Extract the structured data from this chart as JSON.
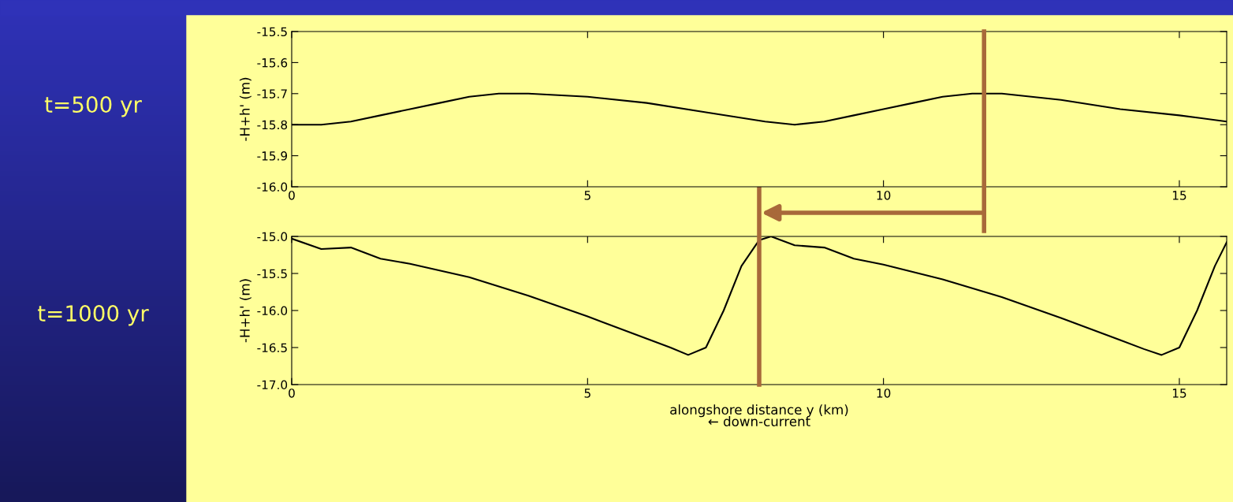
{
  "chart_data": [
    {
      "type": "line",
      "annotations": [
        "t=500 yr"
      ],
      "ylabel": "-H+h' (m)",
      "xlim": [
        0,
        15.8
      ],
      "xticks": [
        0,
        5,
        10,
        15
      ],
      "ylim": [
        -16.0,
        -15.5
      ],
      "yticks": [
        {
          "value": -16.0,
          "label": "-16.0"
        },
        {
          "value": -15.9,
          "label": "-15.9"
        },
        {
          "value": -15.8,
          "label": "-15.8"
        },
        {
          "value": -15.7,
          "label": "-15.7"
        },
        {
          "value": -15.6,
          "label": "-15.6"
        },
        {
          "value": -15.5,
          "label": "-15.5"
        }
      ],
      "grid": false,
      "legend": false,
      "marker": "none",
      "line_style": "solid",
      "ref_lines": [
        {
          "axis": "x",
          "value": 11.7,
          "color": "#a8693a"
        }
      ],
      "series": [
        {
          "color": "#000000",
          "x": [
            0,
            0.5,
            1,
            1.5,
            2,
            2.5,
            3,
            3.5,
            4,
            5,
            6,
            7,
            8,
            8.5,
            9,
            9.5,
            10,
            10.5,
            11,
            11.5,
            12,
            13,
            14,
            15,
            15.8
          ],
          "values": [
            -15.8,
            -15.8,
            -15.79,
            -15.77,
            -15.75,
            -15.73,
            -15.71,
            -15.7,
            -15.7,
            -15.71,
            -15.73,
            -15.76,
            -15.79,
            -15.8,
            -15.79,
            -15.77,
            -15.75,
            -15.73,
            -15.71,
            -15.7,
            -15.7,
            -15.72,
            -15.75,
            -15.77,
            -15.79
          ]
        }
      ]
    },
    {
      "type": "line",
      "annotations": [
        "t=1000 yr"
      ],
      "ylabel": "-H+h' (m)",
      "xlabel": "alongshore distance y (km)\n← down-current",
      "xlim": [
        0,
        15.8
      ],
      "xticks": [
        0,
        5,
        10,
        15
      ],
      "ylim": [
        -17.0,
        -15.0
      ],
      "yticks": [
        {
          "value": -17.0,
          "label": "-17.0"
        },
        {
          "value": -16.5,
          "label": "-16.5"
        },
        {
          "value": -16.0,
          "label": "-16.0"
        },
        {
          "value": -15.5,
          "label": "-15.5"
        },
        {
          "value": -15.0,
          "label": "-15.0"
        }
      ],
      "grid": false,
      "legend": false,
      "marker": "none",
      "line_style": "solid",
      "ref_lines": [
        {
          "axis": "x",
          "value": 7.9,
          "color": "#a8693a"
        }
      ],
      "series": [
        {
          "color": "#000000",
          "x": [
            0,
            0.5,
            1,
            1.5,
            2,
            3,
            4,
            5,
            6,
            6.4,
            6.7,
            7.0,
            7.3,
            7.6,
            7.9,
            8.1,
            8.5,
            9,
            9.5,
            10,
            11,
            12,
            13,
            14,
            14.4,
            14.7,
            15.0,
            15.3,
            15.6,
            15.8
          ],
          "values": [
            -15.03,
            -15.17,
            -15.15,
            -15.3,
            -15.37,
            -15.55,
            -15.8,
            -16.08,
            -16.38,
            -16.5,
            -16.6,
            -16.5,
            -16.0,
            -15.4,
            -15.05,
            -15.0,
            -15.12,
            -15.15,
            -15.3,
            -15.38,
            -15.58,
            -15.82,
            -16.1,
            -16.4,
            -16.52,
            -16.6,
            -16.5,
            -16.0,
            -15.4,
            -15.08
          ]
        }
      ]
    }
  ]
}
